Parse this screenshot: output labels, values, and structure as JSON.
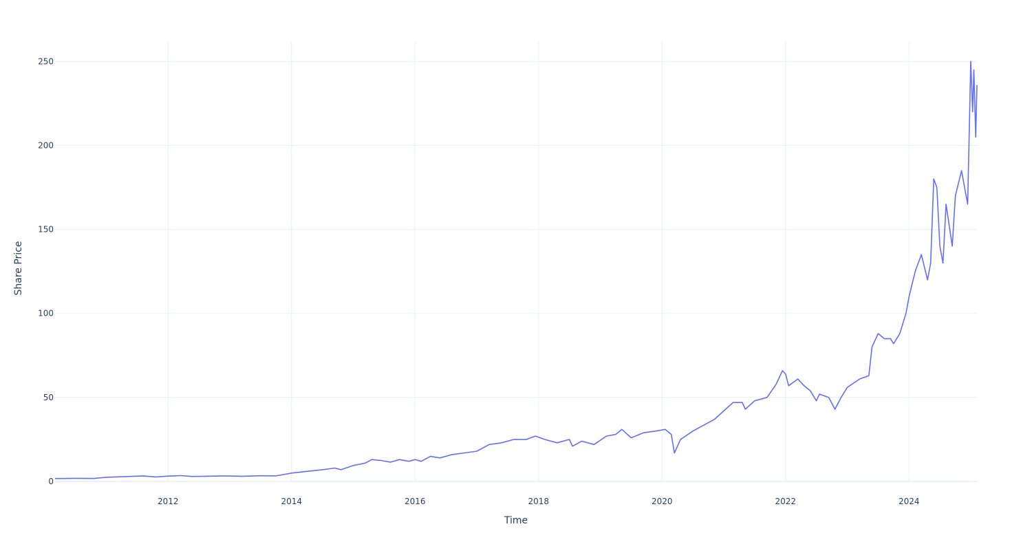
{
  "chart_data": {
    "type": "line",
    "title": "",
    "xlabel": "Time",
    "ylabel": "Share Price",
    "x_range": [
      2010.17,
      2025.1
    ],
    "ylim": [
      0,
      262
    ],
    "x_ticks": [
      2012,
      2014,
      2016,
      2018,
      2020,
      2022,
      2024
    ],
    "x_tick_labels": [
      "2012",
      "2014",
      "2016",
      "2018",
      "2020",
      "2022",
      "2024"
    ],
    "y_ticks": [
      0,
      50,
      100,
      150,
      200,
      250
    ],
    "y_tick_labels": [
      "0",
      "50",
      "100",
      "150",
      "200",
      "250"
    ],
    "grid": true,
    "line_color": "#636efa",
    "grid_color": "#ebf0f8",
    "text_color": "#2a3f5f",
    "series": [
      {
        "x": [
          2010.17,
          2010.5,
          2010.8,
          2011.0,
          2011.3,
          2011.6,
          2011.8,
          2012.0,
          2012.2,
          2012.4,
          2012.6,
          2012.9,
          2013.2,
          2013.5,
          2013.75,
          2014.0,
          2014.25,
          2014.5,
          2014.7,
          2014.8,
          2015.0,
          2015.2,
          2015.3,
          2015.45,
          2015.6,
          2015.75,
          2015.9,
          2016.0,
          2016.1,
          2016.25,
          2016.4,
          2016.6,
          2016.8,
          2017.0,
          2017.2,
          2017.4,
          2017.6,
          2017.8,
          2017.95,
          2018.1,
          2018.3,
          2018.5,
          2018.55,
          2018.7,
          2018.9,
          2019.1,
          2019.25,
          2019.35,
          2019.5,
          2019.7,
          2019.9,
          2020.05,
          2020.15,
          2020.2,
          2020.3,
          2020.5,
          2020.7,
          2020.85,
          2021.0,
          2021.15,
          2021.3,
          2021.35,
          2021.5,
          2021.7,
          2021.85,
          2021.95,
          2022.0,
          2022.05,
          2022.2,
          2022.3,
          2022.4,
          2022.5,
          2022.55,
          2022.7,
          2022.8,
          2022.9,
          2023.0,
          2023.2,
          2023.35,
          2023.4,
          2023.5,
          2023.6,
          2023.7,
          2023.75,
          2023.85,
          2023.95,
          2024.0,
          2024.1,
          2024.2,
          2024.3,
          2024.35,
          2024.4,
          2024.45,
          2024.5,
          2024.55,
          2024.6,
          2024.7,
          2024.75,
          2024.85,
          2024.9,
          2024.95,
          2025.0,
          2025.03,
          2025.05,
          2025.08,
          2025.1
        ],
        "values": [
          1.7,
          1.9,
          1.8,
          2.5,
          2.9,
          3.3,
          2.7,
          3.2,
          3.5,
          3.0,
          3.1,
          3.3,
          3.1,
          3.4,
          3.3,
          5.0,
          6.0,
          7.0,
          8.0,
          7.0,
          9.5,
          11.0,
          13.0,
          12.5,
          11.5,
          13.0,
          12.0,
          13.0,
          12.0,
          15.0,
          14.0,
          16.0,
          17.0,
          18.0,
          22.0,
          23.0,
          25.0,
          25.0,
          27.0,
          25.0,
          23.0,
          25.0,
          21.0,
          24.0,
          22.0,
          27.0,
          28.0,
          31.0,
          26.0,
          29.0,
          30.0,
          31.0,
          28.0,
          17.0,
          25.0,
          30.0,
          34.0,
          37.0,
          42.0,
          47.0,
          47.0,
          43.0,
          48.0,
          50.0,
          58.0,
          66.0,
          64.0,
          57.0,
          61.0,
          57.0,
          54.0,
          48.0,
          52.0,
          50.0,
          43.0,
          50.0,
          56.0,
          61.0,
          63.0,
          80.0,
          88.0,
          85.0,
          85.0,
          82.0,
          88.0,
          100.0,
          110.0,
          125.0,
          135.0,
          120.0,
          130.0,
          180.0,
          175.0,
          140.0,
          130.0,
          165.0,
          140.0,
          170.0,
          185.0,
          175.0,
          165.0,
          250.0,
          220.0,
          245.0,
          205.0,
          236.0
        ]
      }
    ]
  }
}
